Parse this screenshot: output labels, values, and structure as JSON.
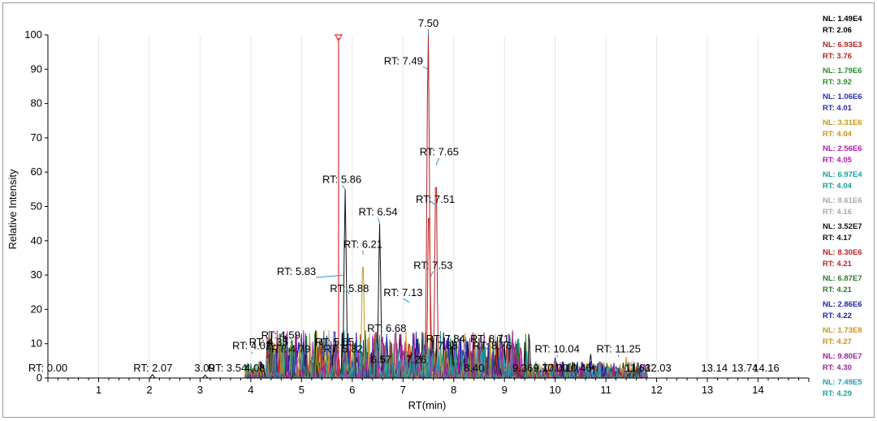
{
  "chart_data": {
    "type": "line",
    "xlabel": "RT(min)",
    "ylabel": "Relative Intensity",
    "xlim": [
      0,
      15
    ],
    "ylim": [
      0,
      100
    ],
    "x_ticks": [
      1,
      2,
      3,
      4,
      5,
      6,
      7,
      8,
      9,
      10,
      11,
      12,
      13,
      14
    ],
    "y_ticks": [
      0,
      10,
      20,
      30,
      40,
      50,
      60,
      70,
      80,
      90,
      100
    ],
    "grid": "vertical",
    "marker": {
      "x": 5.73,
      "color": "#e03030"
    },
    "peak_labels": [
      {
        "text": "7.50",
        "x": 7.5,
        "y": 100,
        "color": "#000000"
      },
      {
        "text": "RT: 7.49",
        "x": 7.49,
        "y": 90
      },
      {
        "text": "RT: 7.65",
        "x": 7.65,
        "y": 62
      },
      {
        "text": "RT: 7.51",
        "x": 7.51,
        "y": 52
      },
      {
        "text": "RT: 5.86",
        "x": 5.86,
        "y": 55
      },
      {
        "text": "RT: 6.54",
        "x": 6.54,
        "y": 45
      },
      {
        "text": "RT: 6.21",
        "x": 6.21,
        "y": 36
      },
      {
        "text": "RT: 5.83",
        "x": 5.83,
        "y": 30
      },
      {
        "text": "RT: 5.88",
        "x": 5.88,
        "y": 26
      },
      {
        "text": "RT: 7.53",
        "x": 7.53,
        "y": 29
      },
      {
        "text": "RT: 7.13",
        "x": 7.13,
        "y": 22
      },
      {
        "text": "RT: 8.71",
        "x": 8.71,
        "y": 9
      },
      {
        "text": "RT: 4.59",
        "x": 4.59,
        "y": 10
      },
      {
        "text": "RT: 4.35",
        "x": 4.35,
        "y": 8
      },
      {
        "text": "RT: 6.68",
        "x": 6.68,
        "y": 12
      },
      {
        "text": "RT: 7.84",
        "x": 7.84,
        "y": 9
      },
      {
        "text": "RT: 5.65",
        "x": 5.65,
        "y": 8
      },
      {
        "text": "RT: 4.79",
        "x": 4.79,
        "y": 6
      },
      {
        "text": "RT: 5.82",
        "x": 5.82,
        "y": 6
      },
      {
        "text": "RT: 8.76",
        "x": 8.76,
        "y": 7
      },
      {
        "text": "RT: 4.02",
        "x": 4.02,
        "y": 7
      },
      {
        "text": "7.88",
        "x": 7.88,
        "y": 7
      },
      {
        "text": "RT: 10.04",
        "x": 10.04,
        "y": 6
      },
      {
        "text": "RT: 11.25",
        "x": 11.25,
        "y": 6
      },
      {
        "text": "6.57",
        "x": 6.57,
        "y": 3
      },
      {
        "text": "7.26",
        "x": 7.26,
        "y": 3
      },
      {
        "text": "RT: 0.00",
        "x": 0.0,
        "y": 0.5
      },
      {
        "text": "RT: 2.07",
        "x": 2.07,
        "y": 0.5
      },
      {
        "text": "3.09",
        "x": 3.09,
        "y": 0.5
      },
      {
        "text": "RT: 3.54",
        "x": 3.54,
        "y": 0.5
      },
      {
        "text": "4.08",
        "x": 4.08,
        "y": 0.5
      },
      {
        "text": "8.40",
        "x": 8.4,
        "y": 0.5
      },
      {
        "text": "9.77",
        "x": 9.77,
        "y": 0.5
      },
      {
        "text": "9.36",
        "x": 9.36,
        "y": 0.5
      },
      {
        "text": "10.00",
        "x": 10.0,
        "y": 0.5
      },
      {
        "text": "10.46",
        "x": 10.46,
        "y": 0.5
      },
      {
        "text": "11.63",
        "x": 11.63,
        "y": 0.5
      },
      {
        "text": "12.03",
        "x": 12.03,
        "y": 0.5
      },
      {
        "text": "13.14",
        "x": 13.14,
        "y": 0.5
      },
      {
        "text": "13.74",
        "x": 13.74,
        "y": 0.5
      },
      {
        "text": "14.16",
        "x": 14.16,
        "y": 0.5
      }
    ],
    "series": [
      {
        "nl": "NL: 1.49E4",
        "rt": "RT: 2.06",
        "color": "#000000",
        "peaks": [
          [
            2.06,
            1
          ],
          [
            3.1,
            0.8
          ]
        ]
      },
      {
        "nl": "NL: 6.93E3",
        "rt": "RT: 3.76",
        "color": "#b22222",
        "peaks": [
          [
            7.5,
            100
          ],
          [
            7.65,
            62
          ],
          [
            7.49,
            90
          ]
        ]
      },
      {
        "nl": "NL: 1.79E6",
        "rt": "RT: 3.92",
        "color": "#2e8b2e",
        "peaks": [
          [
            8.7,
            8
          ],
          [
            9.2,
            5
          ],
          [
            8.3,
            4
          ]
        ]
      },
      {
        "nl": "NL: 1.06E6",
        "rt": "RT: 4.01",
        "color": "#2b2bb5",
        "peaks": [
          [
            5.65,
            15
          ],
          [
            10.0,
            6
          ],
          [
            6.4,
            7
          ]
        ]
      },
      {
        "nl": "NL: 3.31E6",
        "rt": "RT: 4.04",
        "color": "#c8961e",
        "peaks": [
          [
            6.21,
            36
          ],
          [
            11.4,
            6
          ],
          [
            5.82,
            7
          ]
        ]
      },
      {
        "nl": "NL: 2.56E6",
        "rt": "RT: 4.05",
        "color": "#b21ab2",
        "peaks": [
          [
            7.84,
            8
          ],
          [
            8.76,
            6
          ],
          [
            5.5,
            6
          ]
        ]
      },
      {
        "nl": "NL: 6.97E4",
        "rt": "RT: 4.04",
        "color": "#1aa0a0",
        "peaks": [
          [
            4.79,
            8
          ],
          [
            6.9,
            6
          ],
          [
            9.0,
            4
          ]
        ]
      },
      {
        "nl": "NL: 8.61E6",
        "rt": "RT: 4.16",
        "color": "#aaaaaa",
        "peaks": [
          [
            4.59,
            10
          ],
          [
            9.1,
            7
          ],
          [
            6.57,
            5
          ]
        ]
      },
      {
        "nl": "NL: 3.52E7",
        "rt": "RT: 4.17",
        "color": "#111111",
        "peaks": [
          [
            5.86,
            55
          ],
          [
            6.54,
            45
          ],
          [
            4.35,
            12
          ],
          [
            10.7,
            7
          ]
        ]
      },
      {
        "nl": "NL: 8.30E6",
        "rt": "RT: 4.21",
        "color": "#c02020",
        "peaks": [
          [
            7.51,
            52
          ],
          [
            7.53,
            29
          ],
          [
            7.13,
            10
          ]
        ]
      },
      {
        "nl": "NL: 6.87E7",
        "rt": "RT: 4.21",
        "color": "#2a7a2a",
        "peaks": [
          [
            8.71,
            8
          ],
          [
            9.3,
            5
          ],
          [
            5.3,
            5
          ]
        ]
      },
      {
        "nl": "NL: 2.86E6",
        "rt": "RT: 4.22",
        "color": "#2222aa",
        "peaks": [
          [
            6.68,
            12
          ],
          [
            8.2,
            7
          ],
          [
            4.9,
            5
          ]
        ]
      },
      {
        "nl": "NL: 1.73E8",
        "rt": "RT: 4.27",
        "color": "#c8961e",
        "peaks": [
          [
            11.45,
            5
          ],
          [
            7.88,
            6
          ],
          [
            6.0,
            6
          ]
        ]
      },
      {
        "nl": "NL: 9.80E7",
        "rt": "RT: 4.30",
        "color": "#a020a0",
        "peaks": [
          [
            7.0,
            8
          ],
          [
            5.1,
            6
          ],
          [
            8.5,
            5
          ]
        ]
      },
      {
        "nl": "NL: 7.49E5",
        "rt": "RT: 4.29",
        "color": "#20a0a0",
        "peaks": [
          [
            5.9,
            6
          ],
          [
            7.3,
            5
          ],
          [
            9.6,
            4
          ]
        ]
      }
    ]
  }
}
